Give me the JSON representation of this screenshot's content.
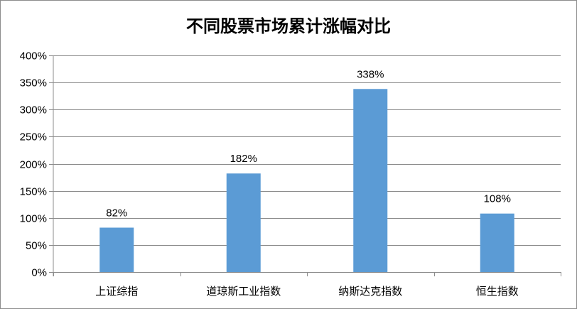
{
  "chart_data": {
    "type": "bar",
    "title": "不同股票市场累计涨幅对比",
    "categories": [
      "上证综指",
      "道琼斯工业指数",
      "纳斯达克指数",
      "恒生指数"
    ],
    "values": [
      82,
      182,
      338,
      108
    ],
    "data_labels": [
      "82%",
      "182%",
      "338%",
      "108%"
    ],
    "ylim": [
      0,
      400
    ],
    "yticks": [
      0,
      50,
      100,
      150,
      200,
      250,
      300,
      350,
      400
    ],
    "ytick_labels": [
      "0%",
      "50%",
      "100%",
      "150%",
      "200%",
      "250%",
      "300%",
      "350%",
      "400%"
    ],
    "xlabel": "",
    "ylabel": "",
    "grid": true,
    "legend": "none",
    "colors": {
      "bar": "#5b9bd5",
      "grid": "#8c8c8c",
      "axis": "#8c8c8c"
    }
  }
}
